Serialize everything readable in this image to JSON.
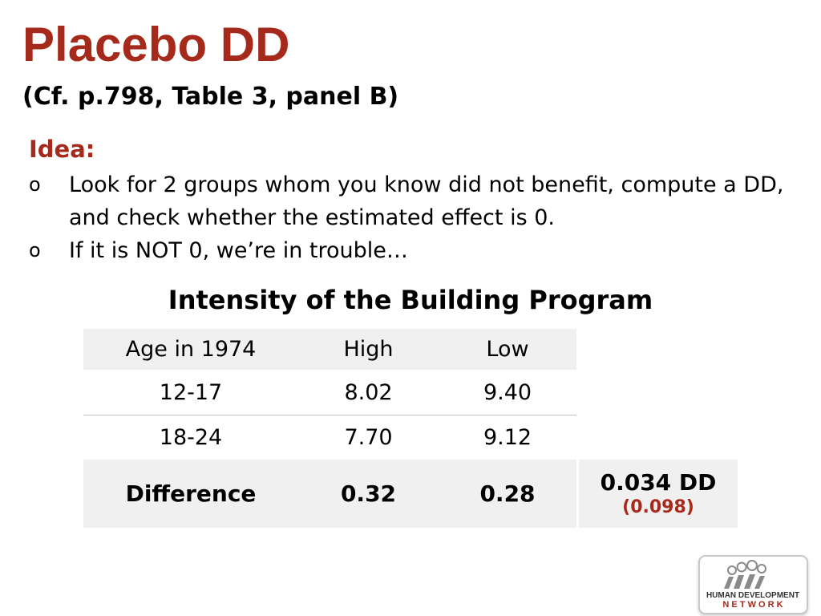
{
  "slide": {
    "title": "Placebo DD",
    "subtitle": "(Cf. p.798, Table 3, panel B)",
    "idea_label": "Idea:",
    "bullets": [
      {
        "marker": "o",
        "text": "Look for 2 groups whom you know did not benefit, compute a DD, and check whether the estimated effect is 0."
      },
      {
        "marker": "o",
        "text": "If it is NOT 0, we’re in trouble…"
      }
    ]
  },
  "table": {
    "title": "Intensity of the Building Program",
    "headers": [
      "Age in 1974",
      "High",
      "Low"
    ],
    "rows": [
      [
        "12-17",
        "8.02",
        "9.40"
      ],
      [
        "18-24",
        "7.70",
        "9.12"
      ]
    ],
    "difference": [
      "Difference",
      "0.32",
      "0.28"
    ],
    "dd_value": "0.034 DD",
    "dd_se": "(0.098)"
  },
  "logo": {
    "line1": "HUMAN DEVELOPMENT",
    "line2": "N E T W O R K"
  },
  "colors": {
    "accent": "#a52a1c",
    "table_shade": "#f0f0f0"
  }
}
